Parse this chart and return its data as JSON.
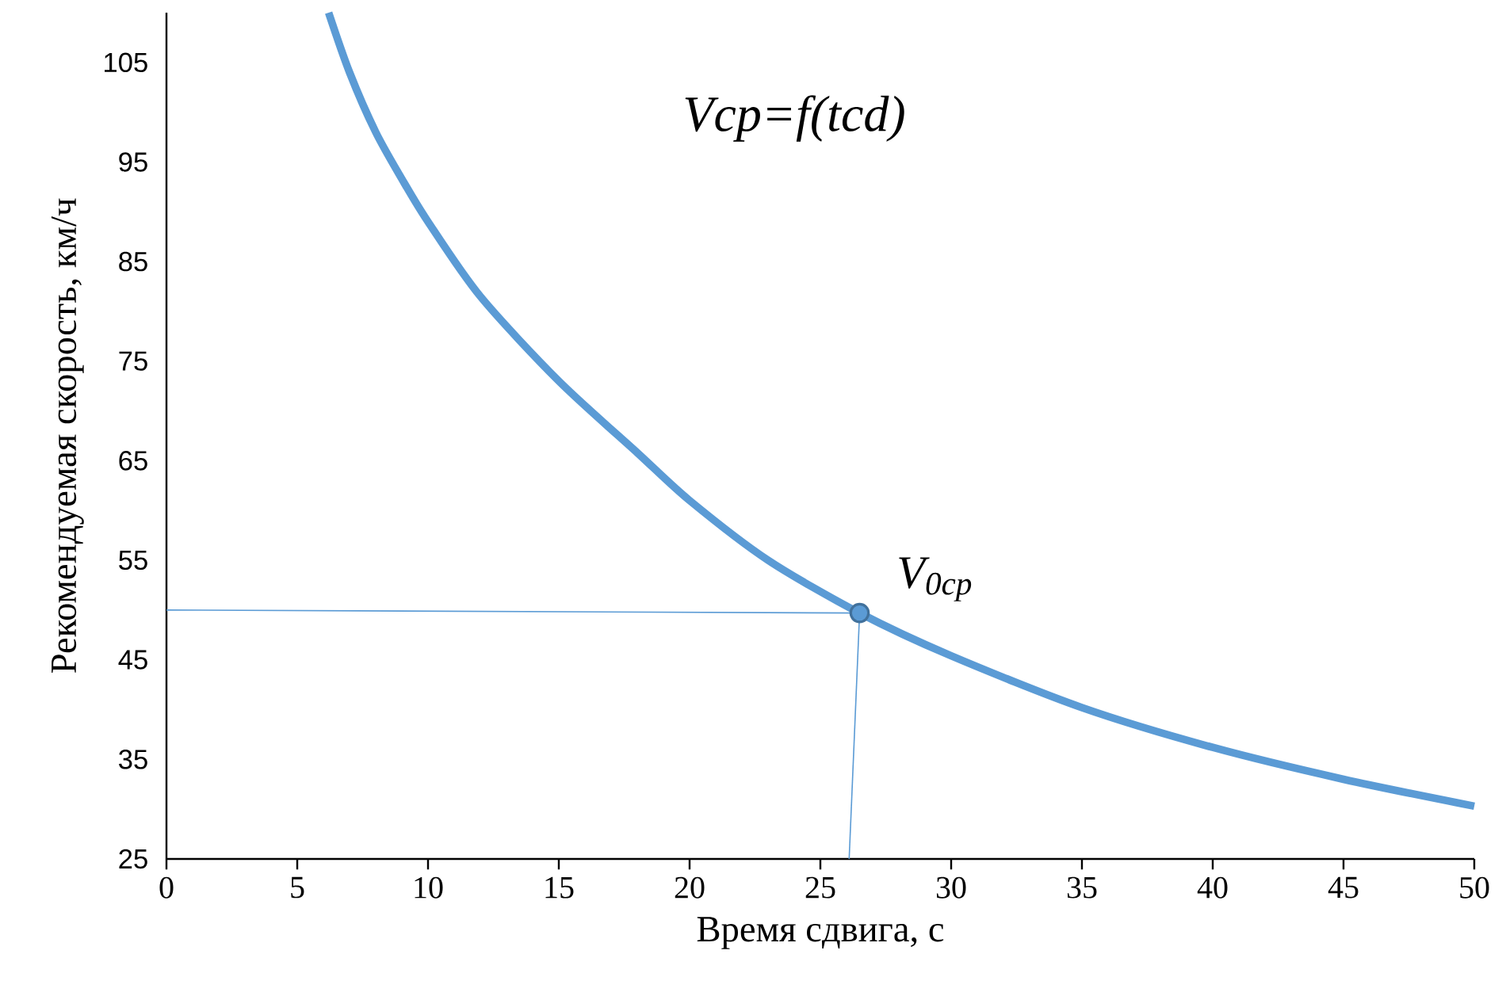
{
  "chart_data": {
    "type": "line",
    "title": "Vcp=f(tcd)",
    "xlabel": "Время сдвига, с",
    "ylabel": "Рекомендуемая скорость, км/ч",
    "x": [
      6.2,
      7,
      8,
      9,
      10,
      12,
      15,
      18,
      20,
      23,
      26.5,
      30,
      35,
      40,
      45,
      50
    ],
    "series": [
      {
        "color": "#5b9bd5",
        "values": [
          110,
          104,
          98,
          93.3,
          89,
          81.5,
          73,
          65.8,
          61,
          55,
          49.7,
          45.4,
          40.2,
          36.2,
          33,
          30.3
        ]
      },
      {
        "type": "line",
        "color": "#5b9bd5",
        "x": [
          0,
          26.5
        ],
        "values": [
          50,
          49.7
        ]
      },
      {
        "type": "line",
        "color": "#5b9bd5",
        "x": [
          26.1,
          26.5
        ],
        "values": [
          25,
          49.7
        ]
      },
      {
        "type": "scatter",
        "color": "#5b9bd5",
        "marker": "circle",
        "x": [
          26.5
        ],
        "values": [
          49.7
        ]
      }
    ],
    "annotations": [
      {
        "text": "V$_{0cp}$",
        "x": 26.5,
        "y": 49.7
      }
    ],
    "xlim": [
      0,
      50
    ],
    "xticks": [
      0,
      5,
      10,
      15,
      20,
      25,
      30,
      35,
      40,
      45,
      50
    ],
    "ylim": [
      25,
      110
    ],
    "yticks": [
      25,
      35,
      45,
      55,
      65,
      75,
      85,
      95,
      105
    ],
    "grid": false,
    "marker": "none",
    "line_style": "solid"
  }
}
